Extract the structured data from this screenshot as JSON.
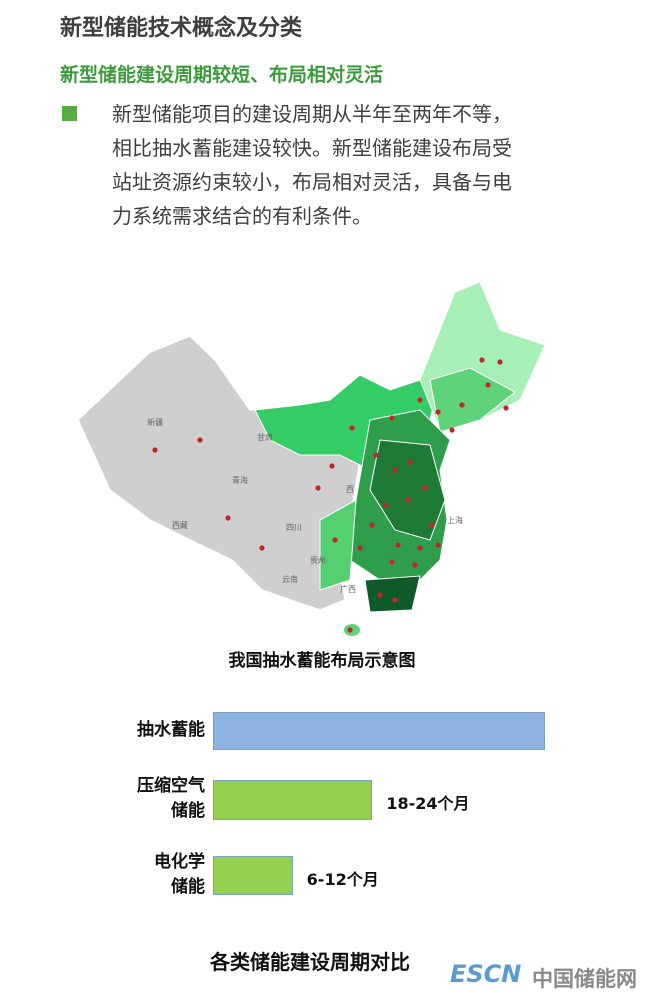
{
  "header": {
    "title": "新型储能技术概念及分类",
    "subtitle": "新型储能建设周期较短、布局相对灵活"
  },
  "body": {
    "lines": [
      "新型储能项目的建设周期从半年至两年不等，",
      "相比抽水蓄能建设较快。新型储能建设布局受",
      "站址资源约束较小，布局相对灵活，具备与电",
      "力系统需求结合的有利条件。"
    ]
  },
  "map": {
    "caption": "我国抽水蓄能布局示意图",
    "labels": [
      "新疆",
      "西藏",
      "青海",
      "甘肃",
      "四川",
      "云南",
      "贵州",
      "广西",
      "上海",
      "西"
    ]
  },
  "chart_data": {
    "type": "hbar",
    "title": "各类储能建设周期对比",
    "categories": [
      "抽水蓄能",
      "压缩空气\n储能",
      "电化学\n储能"
    ],
    "values": [
      50,
      24,
      12
    ],
    "value_labels": [
      null,
      "18-24个月",
      "6-12个月"
    ],
    "colors": [
      "#8db3e2",
      "#92d050",
      "#92d050"
    ],
    "xlim": [
      0,
      50
    ]
  },
  "footer": {
    "logo": "ESCN",
    "site": "中国储能网"
  }
}
